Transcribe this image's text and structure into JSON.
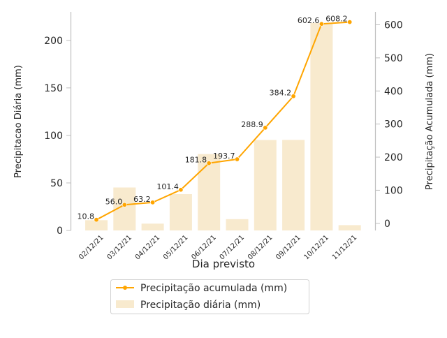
{
  "chart_data": {
    "type": "bar+line",
    "categories": [
      "02/12/21",
      "03/12/21",
      "04/12/21",
      "05/12/21",
      "06/12/21",
      "07/12/21",
      "08/12/21",
      "09/12/21",
      "10/12/21",
      "11/12/21"
    ],
    "series": [
      {
        "name": "Precipitação diária (mm)",
        "type": "bar",
        "axis": "left",
        "color": "#f5deb3",
        "values": [
          10.8,
          45.2,
          7.2,
          38.2,
          80.4,
          11.9,
          95.2,
          95.3,
          218.4,
          5.6
        ]
      },
      {
        "name": "Precipitação acumulada (mm)",
        "type": "line",
        "axis": "right",
        "color": "#ffa500",
        "values": [
          10.8,
          56.0,
          63.2,
          101.4,
          181.8,
          193.7,
          288.9,
          384.2,
          602.6,
          608.2
        ],
        "labels": [
          "10.8",
          "56.0",
          "63.2",
          "101.4",
          "181.8",
          "193.7",
          "288.9",
          "384.2",
          "602.6",
          "608.2"
        ]
      }
    ],
    "xlabel": "Dia previsto",
    "ylabel_left": "Precipitacao Diária (mm)",
    "ylabel_right": "Precipitação Acumulada (mm)",
    "ylim_left": [
      0,
      230
    ],
    "yticks_left": [
      0,
      50,
      100,
      150,
      200
    ],
    "ylim_right": [
      -21.5,
      639.0
    ],
    "yticks_right": [
      0,
      100,
      200,
      300,
      400,
      500,
      600
    ],
    "grid": false,
    "legend_position": "below chart"
  }
}
